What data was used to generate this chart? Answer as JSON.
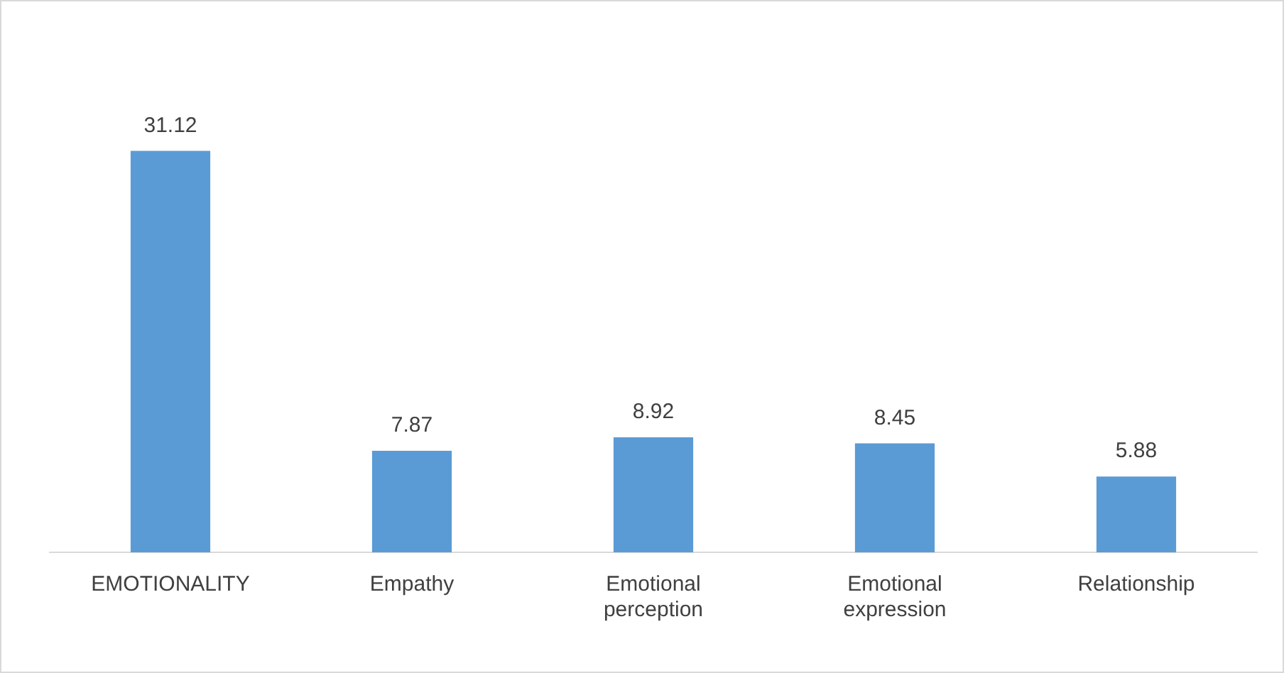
{
  "chart_data": {
    "type": "bar",
    "categories": [
      "EMOTIONALITY",
      "Empathy",
      "Emotional perception",
      "Emotional expression",
      "Relationship"
    ],
    "values": [
      31.12,
      7.87,
      8.92,
      8.45,
      5.88
    ],
    "color": "#5b9bd5",
    "data_labels": true,
    "grid": false,
    "legend": false
  }
}
